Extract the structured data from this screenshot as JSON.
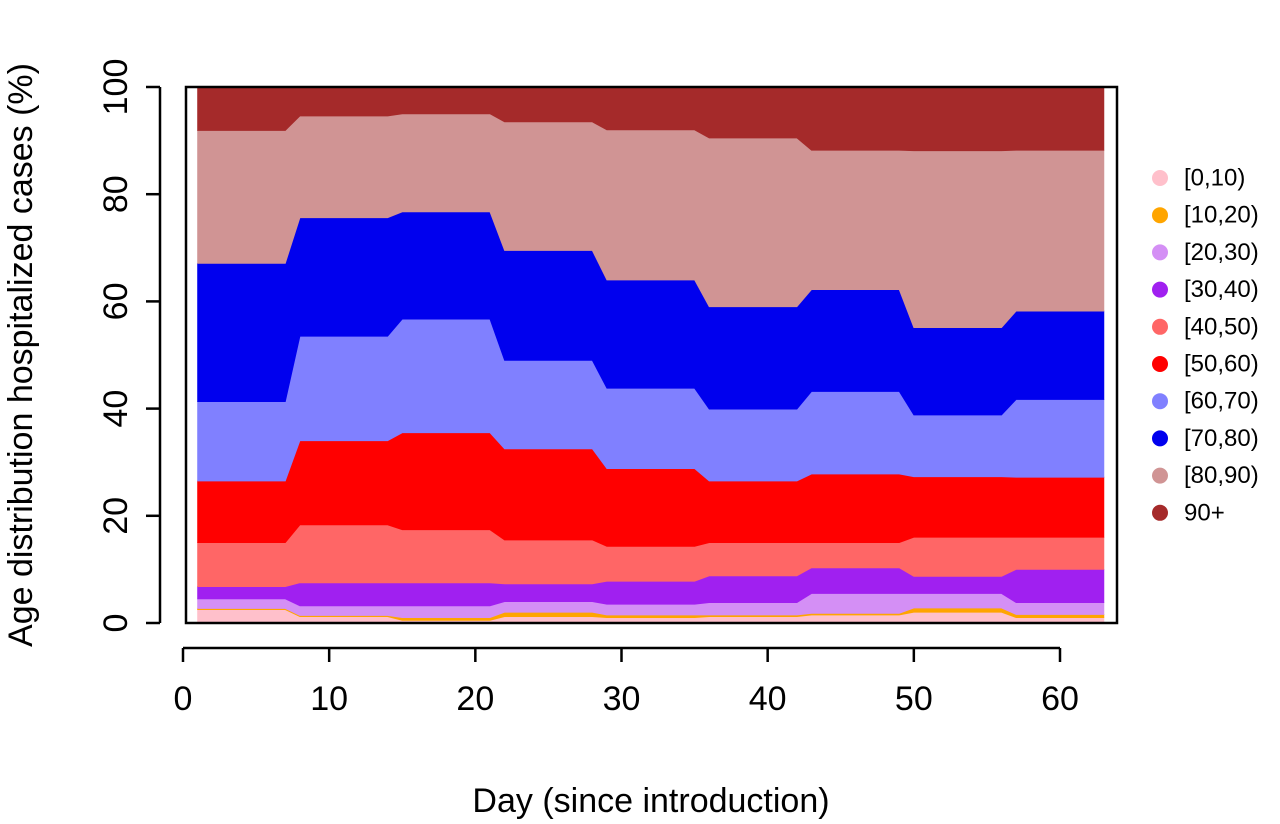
{
  "chart_data": {
    "type": "area",
    "stacked": true,
    "xlabel": "Day (since introduction)",
    "ylabel": "Age distribution hospitalized cases (%)",
    "xlim": [
      0,
      63
    ],
    "ylim": [
      0,
      100
    ],
    "xticks": [
      0,
      10,
      20,
      30,
      40,
      50,
      60
    ],
    "yticks": [
      0,
      20,
      40,
      60,
      80,
      100
    ],
    "grid": false,
    "legend_position": "right",
    "x": [
      1,
      7,
      8,
      14,
      15,
      21,
      22,
      28,
      29,
      35,
      36,
      42,
      43,
      49,
      50,
      56,
      57,
      63
    ],
    "series": [
      {
        "name": "[0,10)",
        "color": "#FFC0CB",
        "values": [
          2.5,
          2.5,
          1.2,
          1.2,
          0.5,
          0.5,
          1.2,
          1.2,
          1.0,
          1.0,
          1.2,
          1.2,
          1.5,
          1.5,
          2.0,
          2.0,
          1.0,
          1.0
        ]
      },
      {
        "name": "[10,20)",
        "color": "#FFA500",
        "values": [
          0.2,
          0.2,
          0.2,
          0.2,
          0.5,
          0.5,
          0.8,
          0.8,
          0.5,
          0.5,
          0.3,
          0.3,
          0.3,
          0.3,
          0.8,
          0.8,
          0.6,
          0.6
        ]
      },
      {
        "name": "[20,30)",
        "color": "#D48FF5",
        "values": [
          1.8,
          1.8,
          1.8,
          1.8,
          2.2,
          2.2,
          2.0,
          2.0,
          2.0,
          2.0,
          2.3,
          2.3,
          3.7,
          3.7,
          2.7,
          2.7,
          2.2,
          2.2
        ]
      },
      {
        "name": "[30,40)",
        "color": "#A020F0",
        "values": [
          2.3,
          2.3,
          4.3,
          4.3,
          4.3,
          4.3,
          3.3,
          3.3,
          4.3,
          4.3,
          5.0,
          5.0,
          4.8,
          4.8,
          3.2,
          3.2,
          6.2,
          6.2
        ]
      },
      {
        "name": "[40,50)",
        "color": "#FF6666",
        "values": [
          8.2,
          8.2,
          10.8,
          10.8,
          9.9,
          9.9,
          8.2,
          8.2,
          6.5,
          6.5,
          6.2,
          6.2,
          4.7,
          4.7,
          7.3,
          7.3,
          6.0,
          6.0
        ]
      },
      {
        "name": "[50,60)",
        "color": "#FF0000",
        "values": [
          11.5,
          11.5,
          15.7,
          15.7,
          18.1,
          18.1,
          17.0,
          17.0,
          14.5,
          14.5,
          11.5,
          11.5,
          12.8,
          12.8,
          11.3,
          11.3,
          11.2,
          11.2
        ]
      },
      {
        "name": "[60,70)",
        "color": "#8080FF",
        "values": [
          14.8,
          14.8,
          19.5,
          19.5,
          21.2,
          21.2,
          16.5,
          16.5,
          15.0,
          15.0,
          13.4,
          13.4,
          15.4,
          15.4,
          11.5,
          11.5,
          14.5,
          14.5
        ]
      },
      {
        "name": "[70,80)",
        "color": "#0000EE",
        "values": [
          25.8,
          25.8,
          22.1,
          22.1,
          20.0,
          20.0,
          20.5,
          20.5,
          20.2,
          20.2,
          19.1,
          19.1,
          19.0,
          19.0,
          16.3,
          16.3,
          16.5,
          16.5
        ]
      },
      {
        "name": "[80,90)",
        "color": "#D09494",
        "values": [
          24.8,
          24.8,
          19.0,
          19.0,
          18.3,
          18.3,
          24.0,
          24.0,
          28.0,
          28.0,
          31.5,
          31.5,
          26.0,
          26.0,
          33.0,
          33.0,
          30.0,
          30.0
        ]
      },
      {
        "name": "90+",
        "color": "#A52A2A",
        "values": [
          8.1,
          8.1,
          5.4,
          5.4,
          5.0,
          5.0,
          6.5,
          6.5,
          8.0,
          8.0,
          9.5,
          9.5,
          11.8,
          11.8,
          11.9,
          11.9,
          11.8,
          11.8
        ]
      }
    ]
  }
}
